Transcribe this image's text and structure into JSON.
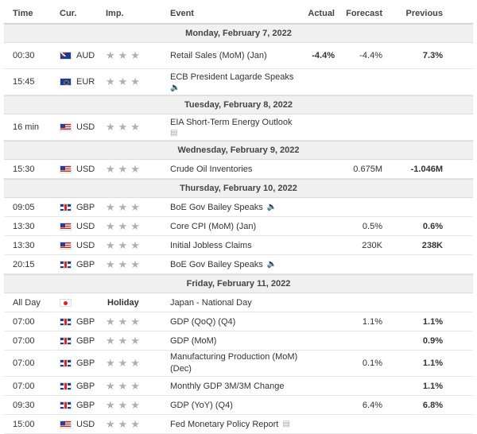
{
  "header": {
    "time": "Time",
    "currency": "Cur.",
    "importance": "Imp.",
    "event": "Event",
    "actual": "Actual",
    "forecast": "Forecast",
    "previous": "Previous"
  },
  "stars": "★★★",
  "days": [
    {
      "label": "Monday, February 7, 2022",
      "events": [
        {
          "time": "00:30",
          "flag": "aud",
          "cur": "AUD",
          "event": "Retail Sales (MoM) (Jan)",
          "icon": "",
          "actual": "-4.4%",
          "forecast": "-4.4%",
          "previous": "7.3%",
          "h": 2
        },
        {
          "time": "15:45",
          "flag": "eur",
          "cur": "EUR",
          "event": "ECB President Lagarde Speaks",
          "icon": "speaker-icon",
          "actual": "",
          "forecast": "",
          "previous": "",
          "h": 2,
          "iconBelow": true
        }
      ]
    },
    {
      "label": "Tuesday, February 8, 2022",
      "events": [
        {
          "time": "16 min",
          "flag": "usd",
          "cur": "USD",
          "event": "EIA Short-Term Energy Outlook",
          "icon": "document-icon",
          "actual": "",
          "forecast": "",
          "previous": "",
          "h": 2,
          "iconBelow": true
        }
      ]
    },
    {
      "label": "Wednesday, February 9, 2022",
      "events": [
        {
          "time": "15:30",
          "flag": "usd",
          "cur": "USD",
          "event": "Crude Oil Inventories",
          "icon": "",
          "actual": "",
          "forecast": "0.675M",
          "previous": "-1.046M",
          "h": 1
        }
      ]
    },
    {
      "label": "Thursday, February 10, 2022",
      "events": [
        {
          "time": "09:05",
          "flag": "gbp",
          "cur": "GBP",
          "event": "BoE Gov Bailey Speaks",
          "icon": "speaker-icon",
          "actual": "",
          "forecast": "",
          "previous": "",
          "h": 1
        },
        {
          "time": "13:30",
          "flag": "usd",
          "cur": "USD",
          "event": "Core CPI (MoM) (Jan)",
          "icon": "",
          "actual": "",
          "forecast": "0.5%",
          "previous": "0.6%",
          "h": 1
        },
        {
          "time": "13:30",
          "flag": "usd",
          "cur": "USD",
          "event": "Initial Jobless Claims",
          "icon": "",
          "actual": "",
          "forecast": "230K",
          "previous": "238K",
          "h": 1
        },
        {
          "time": "20:15",
          "flag": "gbp",
          "cur": "GBP",
          "event": "BoE Gov Bailey Speaks",
          "icon": "speaker-icon",
          "actual": "",
          "forecast": "",
          "previous": "",
          "h": 1
        }
      ]
    },
    {
      "label": "Friday, February 11, 2022",
      "events": [
        {
          "time": "All Day",
          "flag": "jpy",
          "cur": "",
          "holiday": "Holiday",
          "event": "Japan - National Day",
          "icon": "",
          "actual": "",
          "forecast": "",
          "previous": "",
          "h": 1
        },
        {
          "time": "07:00",
          "flag": "gbp",
          "cur": "GBP",
          "event": "GDP (QoQ) (Q4)",
          "icon": "",
          "actual": "",
          "forecast": "1.1%",
          "previous": "1.1%",
          "h": 1
        },
        {
          "time": "07:00",
          "flag": "gbp",
          "cur": "GBP",
          "event": "GDP (MoM)",
          "icon": "",
          "actual": "",
          "forecast": "",
          "previous": "0.9%",
          "h": 1
        },
        {
          "time": "07:00",
          "flag": "gbp",
          "cur": "GBP",
          "event": "Manufacturing Production (MoM) (Dec)",
          "icon": "",
          "actual": "",
          "forecast": "0.1%",
          "previous": "1.1%",
          "h": 2,
          "wrap": true
        },
        {
          "time": "07:00",
          "flag": "gbp",
          "cur": "GBP",
          "event": "Monthly GDP 3M/3M Change",
          "icon": "",
          "actual": "",
          "forecast": "",
          "previous": "1.1%",
          "h": 1
        },
        {
          "time": "09:30",
          "flag": "gbp",
          "cur": "GBP",
          "event": "GDP (YoY) (Q4)",
          "icon": "",
          "actual": "",
          "forecast": "6.4%",
          "previous": "6.8%",
          "h": 1
        },
        {
          "time": "15:00",
          "flag": "usd",
          "cur": "USD",
          "event": "Fed Monetary Policy Report",
          "icon": "document-icon",
          "actual": "",
          "forecast": "",
          "previous": "",
          "h": 1
        }
      ]
    }
  ]
}
